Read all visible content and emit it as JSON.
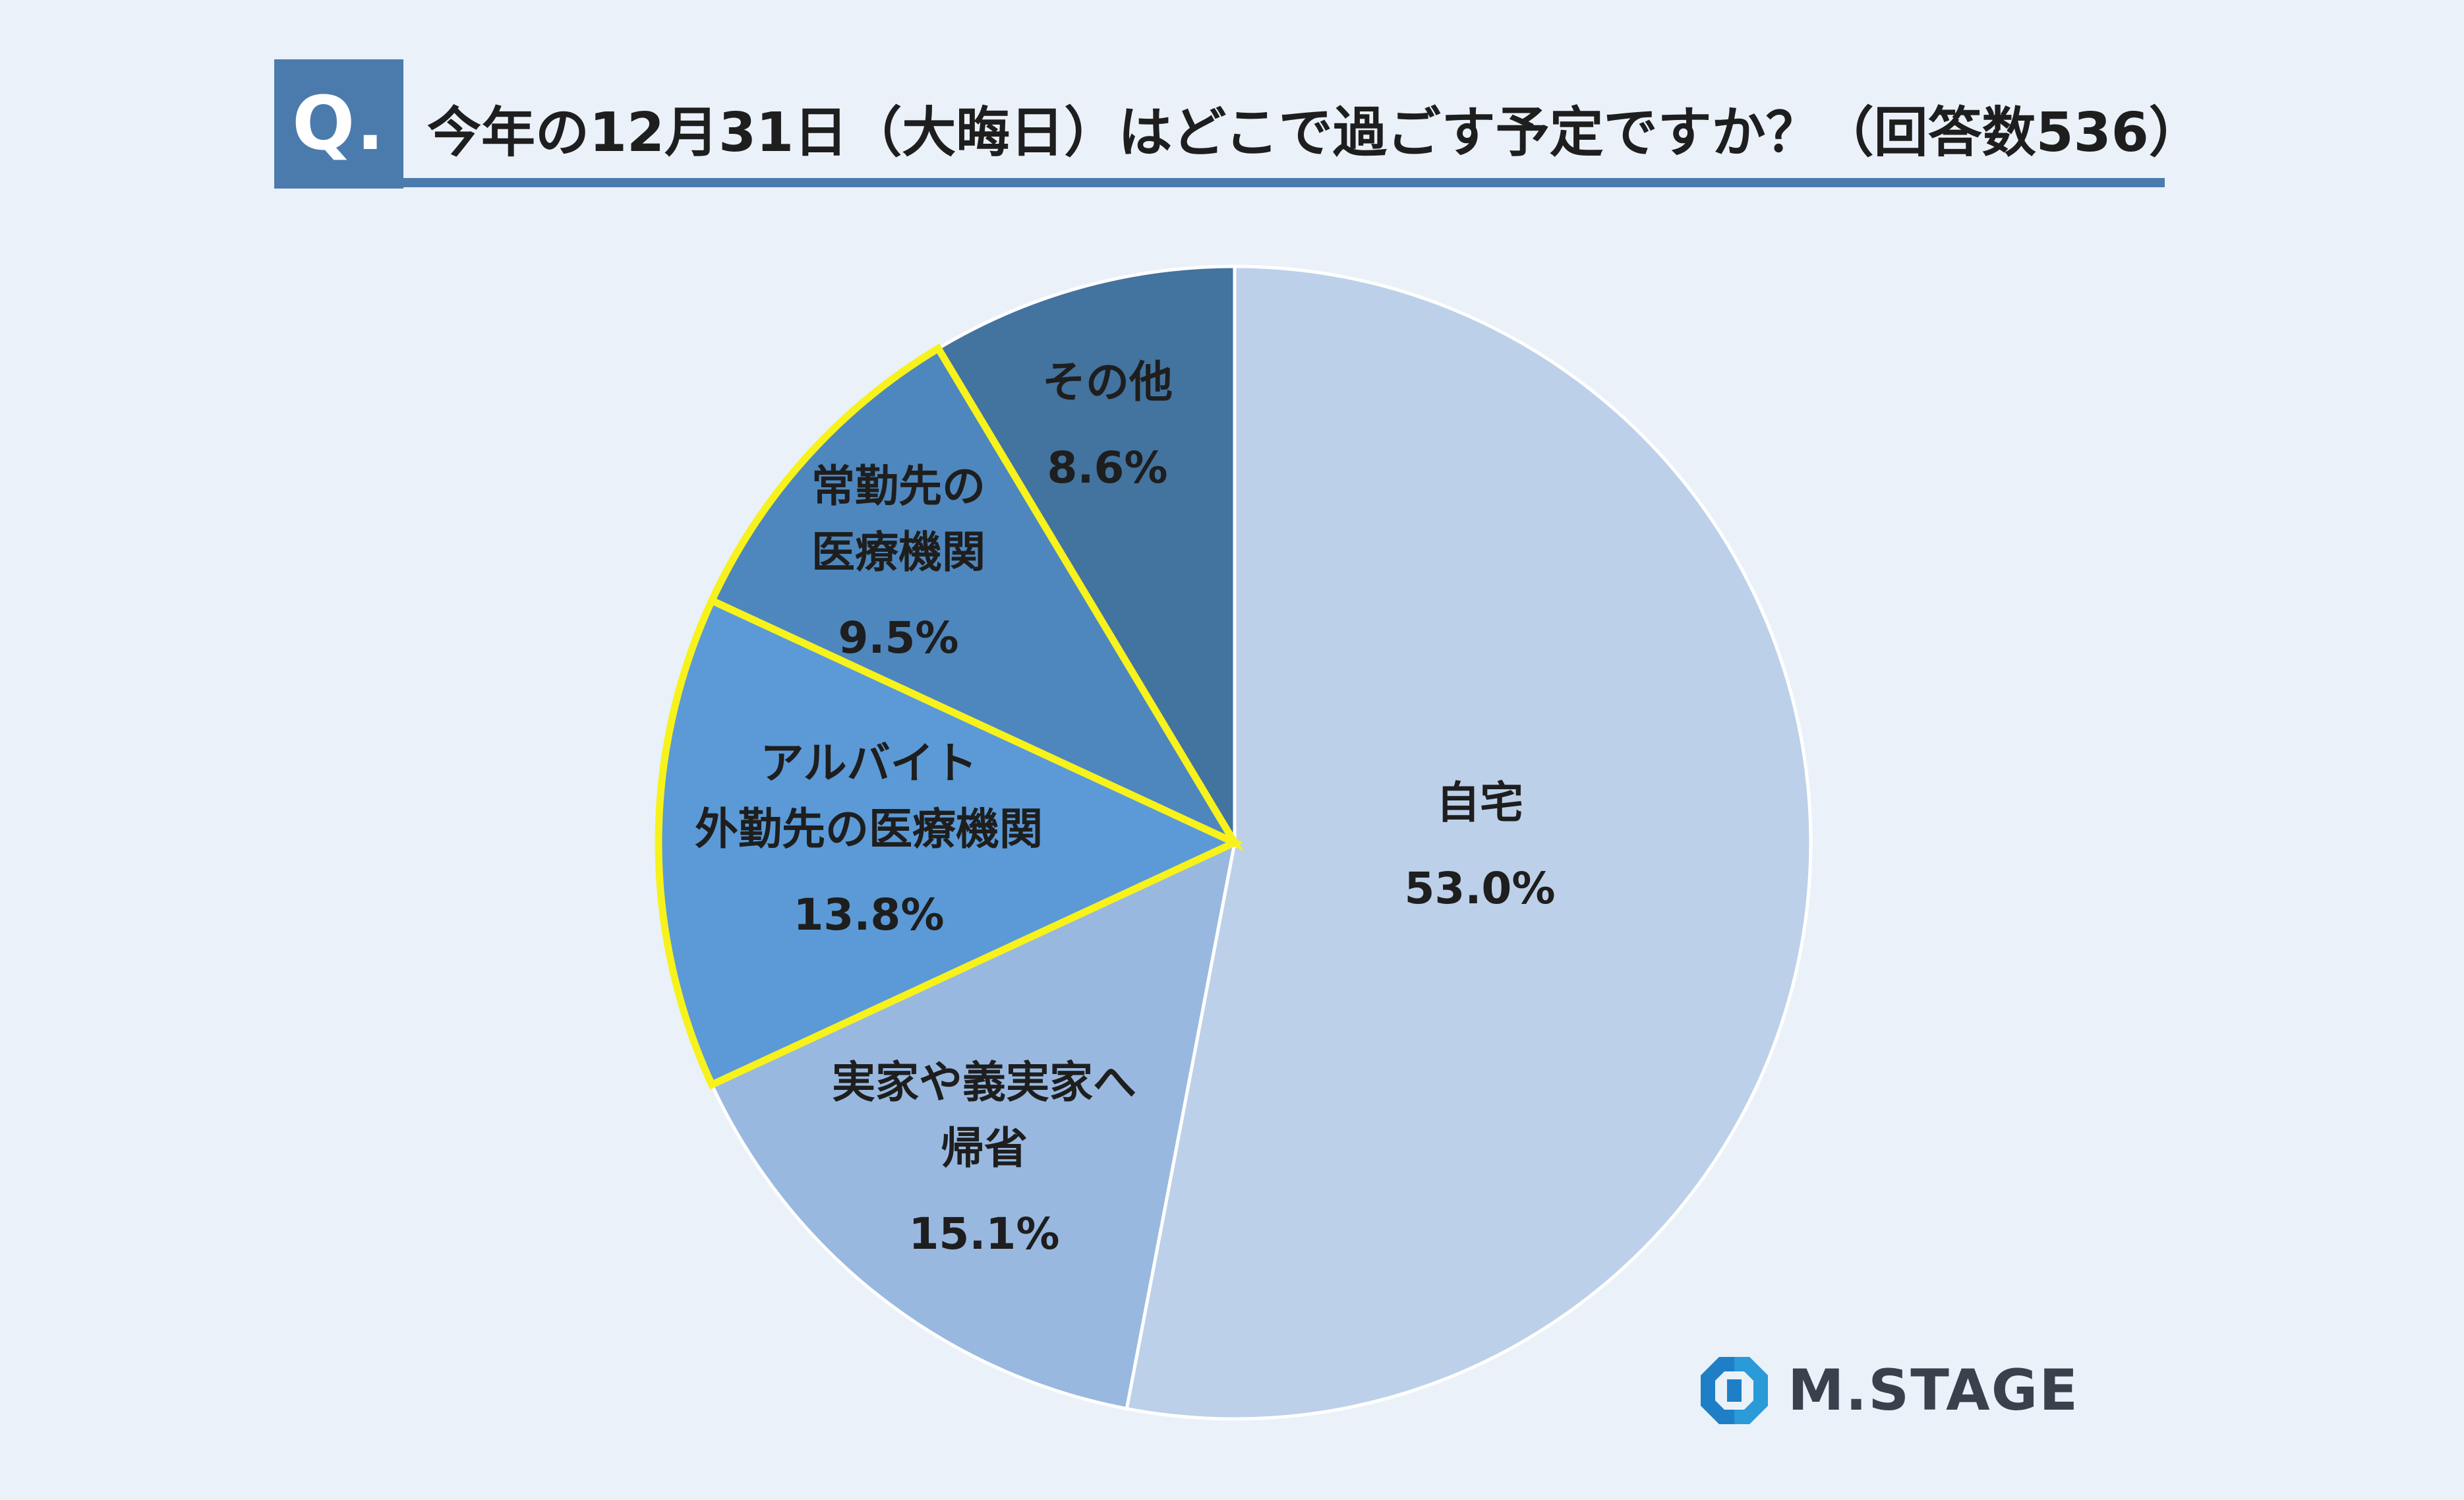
{
  "question": {
    "badge": "Q.",
    "title": "今年の12月31日（大晦日）はどこで過ごす予定ですか？（回答数536）"
  },
  "brand": {
    "name": "M.STAGE"
  },
  "colors": {
    "background": "#eaf1f9",
    "accent": "#4b7bac",
    "highlight_outline": "#f7f21b",
    "slice_divider": "#ffffff"
  },
  "chart_data": {
    "type": "pie",
    "title": "今年の12月31日（大晦日）はどこで過ごす予定ですか？（回答数536）",
    "total_responses": 536,
    "start": "12 o'clock",
    "direction": "clockwise",
    "slices": [
      {
        "label": "自宅",
        "label_lines": [
          "自宅"
        ],
        "value": 53.0,
        "value_label": "53.0%",
        "color": "#bcd0e9",
        "highlighted": false
      },
      {
        "label": "実家や義実家へ帰省",
        "label_lines": [
          "実家や義実家へ",
          "帰省"
        ],
        "value": 15.1,
        "value_label": "15.1%",
        "color": "#98b8e0",
        "highlighted": false
      },
      {
        "label": "アルバイト外勤先の医療機関",
        "label_lines": [
          "アルバイト",
          "外勤先の医療機関"
        ],
        "value": 13.8,
        "value_label": "13.8%",
        "color": "#5b9ad6",
        "highlighted": true
      },
      {
        "label": "常勤先の医療機関",
        "label_lines": [
          "常勤先の",
          "医療機関"
        ],
        "value": 9.5,
        "value_label": "9.5%",
        "color": "#4e87bd",
        "highlighted": true
      },
      {
        "label": "その他",
        "label_lines": [
          "その他"
        ],
        "value": 8.6,
        "value_label": "8.6%",
        "color": "#43739f",
        "highlighted": false
      }
    ]
  }
}
